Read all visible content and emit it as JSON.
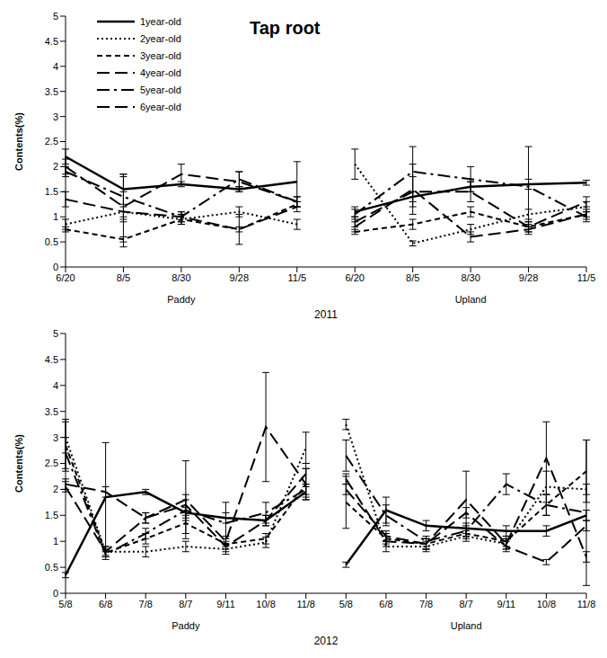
{
  "chart_data": [
    {
      "type": "line",
      "title": "Tap root",
      "ylabel": "Contents(%)",
      "xlabel": "2011",
      "ylim": [
        0,
        5
      ],
      "yticks": [
        0,
        0.5,
        1,
        1.5,
        2,
        2.5,
        3,
        3.5,
        4,
        4.5,
        5
      ],
      "legend": "upper left",
      "groups": [
        {
          "name": "Paddy",
          "categories": [
            "6/20",
            "8/5",
            "8/30",
            "9/28",
            "11/5"
          ]
        },
        {
          "name": "Upland",
          "categories": [
            "6/20",
            "8/5",
            "8/30",
            "9/28",
            "11/5"
          ]
        }
      ],
      "series": [
        {
          "name": "1year-old",
          "color": "#000000",
          "line_style": "solid",
          "values": {
            "Paddy": [
              2.2,
              1.55,
              1.65,
              1.55,
              1.7
            ],
            "Upland": [
              1.1,
              1.4,
              1.6,
              1.65,
              1.68
            ]
          },
          "errors": {
            "Paddy": [
              0.15,
              0.3,
              0.05,
              0.05,
              0.4
            ],
            "Upland": [
              0.1,
              0.1,
              0.1,
              0.1,
              0.05
            ]
          }
        },
        {
          "name": "2year-old",
          "color": "#000000",
          "line_style": "dotted",
          "values": {
            "Paddy": [
              0.85,
              1.1,
              0.95,
              1.1,
              0.85
            ],
            "Upland": [
              2.05,
              0.47,
              0.75,
              1.05,
              1.2
            ]
          },
          "errors": {
            "Paddy": [
              0.1,
              0.1,
              0.1,
              0.1,
              0.1
            ],
            "Upland": [
              0.3,
              0.05,
              0.1,
              0.1,
              0.1
            ]
          }
        },
        {
          "name": "3year-old",
          "color": "#000000",
          "line_style": "dashed",
          "values": {
            "Paddy": [
              0.75,
              0.55,
              0.95,
              0.75,
              1.25
            ],
            "Upland": [
              0.7,
              0.85,
              1.1,
              0.8,
              1.05
            ]
          },
          "errors": {
            "Paddy": [
              0.05,
              0.05,
              0.1,
              0.05,
              0.05
            ],
            "Upland": [
              0.05,
              0.1,
              0.1,
              0.1,
              0.05
            ]
          }
        },
        {
          "name": "4year-old",
          "color": "#000000",
          "line_style": "long_dash",
          "values": {
            "Paddy": [
              1.35,
              1.1,
              1.0,
              0.75,
              1.2
            ],
            "Upland": [
              0.8,
              1.55,
              0.6,
              0.75,
              1.05
            ]
          },
          "errors": {
            "Paddy": [
              0.15,
              0.7,
              0.1,
              0.3,
              0.1
            ],
            "Upland": [
              0.1,
              0.5,
              0.1,
              0.1,
              0.1
            ]
          }
        },
        {
          "name": "5year-old",
          "color": "#000000",
          "line_style": "dash_dot",
          "values": {
            "Paddy": [
              1.9,
              1.4,
              1.0,
              1.75,
              1.3
            ],
            "Upland": [
              1.05,
              1.9,
              1.75,
              1.6,
              1.0
            ]
          },
          "errors": {
            "Paddy": [
              0.1,
              0.45,
              0.1,
              0.15,
              0.1
            ],
            "Upland": [
              0.1,
              0.5,
              0.25,
              0.8,
              0.1
            ]
          }
        },
        {
          "name": "6year-old",
          "color": "#000000",
          "line_style": "long_dash",
          "values": {
            "Paddy": [
              2.0,
              1.2,
              1.85,
              1.7,
              1.3
            ],
            "Upland": [
              0.9,
              1.5,
              1.5,
              0.8,
              1.3
            ]
          },
          "errors": {
            "Paddy": [
              0.15,
              0.3,
              0.2,
              0.2,
              0.1
            ],
            "Upland": [
              0.1,
              0.3,
              0.2,
              0.1,
              0.1
            ]
          }
        }
      ]
    },
    {
      "type": "line",
      "ylabel": "Contents(%)",
      "xlabel": "2012",
      "ylim": [
        0,
        5
      ],
      "yticks": [
        0,
        0.5,
        1,
        1.5,
        2,
        2.5,
        3,
        3.5,
        4,
        4.5,
        5
      ],
      "groups": [
        {
          "name": "Paddy",
          "categories": [
            "5/8",
            "6/8",
            "7/8",
            "8/7",
            "9/11",
            "10/8",
            "11/8"
          ]
        },
        {
          "name": "Upland",
          "categories": [
            "5/8",
            "6/8",
            "7/8",
            "8/7",
            "9/11",
            "10/8",
            "11/8"
          ]
        }
      ],
      "series": [
        {
          "name": "1year-old",
          "color": "#000000",
          "line_style": "solid",
          "values": {
            "Paddy": [
              0.35,
              1.85,
              1.95,
              1.55,
              1.45,
              1.4,
              1.95
            ],
            "Upland": [
              0.55,
              1.6,
              1.3,
              1.25,
              1.2,
              1.2,
              1.5
            ]
          },
          "errors": {
            "Paddy": [
              0.05,
              1.05,
              0.05,
              0.1,
              0.1,
              0.1,
              0.1
            ],
            "Upland": [
              0.05,
              0.25,
              0.1,
              0.1,
              0.1,
              0.1,
              0.1
            ]
          }
        },
        {
          "name": "2year-old",
          "color": "#000000",
          "line_style": "dotted",
          "values": {
            "Paddy": [
              3.0,
              0.8,
              0.8,
              0.9,
              0.85,
              0.98,
              2.8
            ],
            "Upland": [
              3.25,
              0.9,
              0.9,
              1.1,
              0.95,
              2.05,
              2.0
            ]
          },
          "errors": {
            "Paddy": [
              0.3,
              0.1,
              0.1,
              0.1,
              0.1,
              0.1,
              0.3
            ],
            "Upland": [
              0.1,
              0.1,
              0.1,
              0.1,
              0.1,
              0.3,
              0.1
            ]
          }
        },
        {
          "name": "3year-old",
          "color": "#000000",
          "line_style": "dashed",
          "values": {
            "Paddy": [
              2.85,
              0.78,
              1.05,
              1.35,
              0.95,
              1.05,
              2.1
            ],
            "Upland": [
              1.75,
              1.05,
              0.95,
              1.15,
              1.0,
              1.7,
              2.35
            ]
          },
          "errors": {
            "Paddy": [
              0.5,
              0.05,
              0.1,
              0.2,
              0.1,
              0.1,
              0.3
            ],
            "Upland": [
              0.5,
              0.1,
              0.1,
              0.1,
              0.1,
              0.2,
              0.6
            ]
          }
        },
        {
          "name": "4year-old",
          "color": "#000000",
          "line_style": "long_dash",
          "values": {
            "Paddy": [
              2.05,
              0.8,
              1.45,
              1.8,
              1.0,
              3.2,
              2.1
            ],
            "Upland": [
              2.2,
              1.0,
              0.95,
              1.8,
              0.95,
              2.6,
              0.7
            ]
          },
          "errors": {
            "Paddy": [
              0.1,
              0.1,
              0.1,
              0.75,
              0.1,
              1.05,
              0.3
            ],
            "Upland": [
              0.1,
              0.1,
              0.1,
              0.55,
              0.1,
              0.7,
              0.1
            ]
          }
        },
        {
          "name": "5year-old",
          "color": "#000000",
          "line_style": "dash_dot",
          "values": {
            "Paddy": [
              2.7,
              0.75,
              1.15,
              1.6,
              1.35,
              1.55,
              2.0
            ],
            "Upland": [
              2.65,
              1.5,
              1.0,
              1.2,
              2.1,
              1.7,
              1.55
            ]
          },
          "errors": {
            "Paddy": [
              0.3,
              0.1,
              0.1,
              0.2,
              0.4,
              0.2,
              0.1
            ],
            "Upland": [
              0.3,
              0.2,
              0.1,
              0.1,
              0.2,
              0.2,
              1.4
            ]
          }
        },
        {
          "name": "6year-old",
          "color": "#000000",
          "line_style": "long_dash",
          "values": {
            "Paddy": [
              2.1,
              1.95,
              1.45,
              1.7,
              0.9,
              1.4,
              2.3
            ],
            "Upland": [
              2.0,
              1.1,
              0.95,
              1.55,
              0.9,
              0.6,
              1.3
            ]
          },
          "errors": {
            "Paddy": [
              0.1,
              0.1,
              0.1,
              0.2,
              0.1,
              0.1,
              0.2
            ],
            "Upland": [
              0.1,
              0.1,
              0.1,
              0.1,
              0.1,
              0.05,
              0.1
            ]
          }
        }
      ]
    }
  ]
}
